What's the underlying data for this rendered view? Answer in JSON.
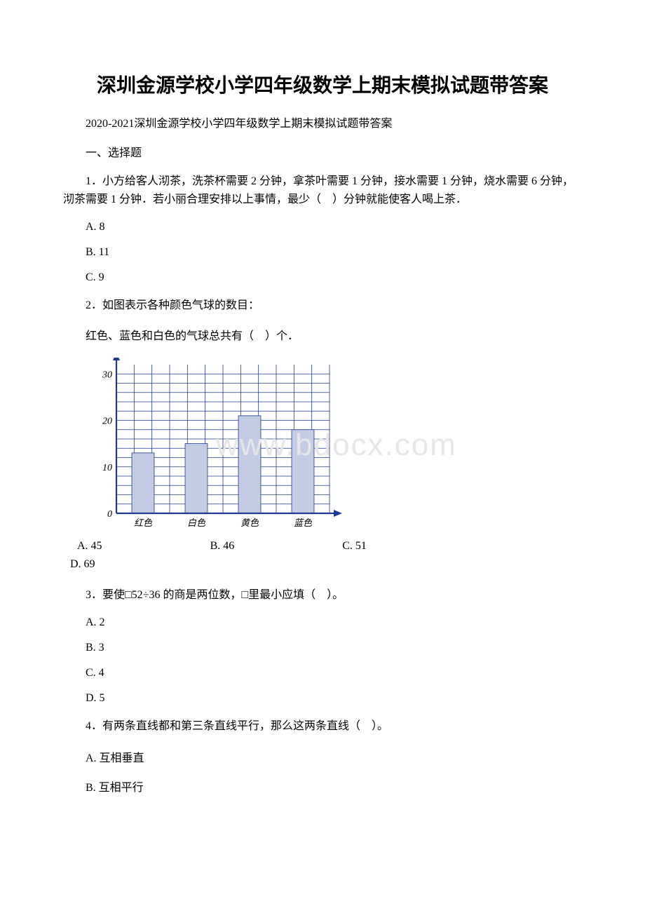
{
  "title": "深圳金源学校小学四年级数学上期末模拟试题带答案",
  "subtitle": "2020-2021深圳金源学校小学四年级数学上期末模拟试题带答案",
  "section1_heading": "一、选择题",
  "q1": {
    "text": "1．小方给客人沏茶，洗茶杯需要 2 分钟，拿茶叶需要 1 分钟，接水需要 1 分钟，烧水需要 6 分钟，沏茶需要 1 分钟．若小丽合理安排以上事情，最少（　）分钟就能使客人喝上茶．",
    "A": "A. 8",
    "B": "B. 11",
    "C": "C. 9"
  },
  "q2": {
    "text": "2．如图表示各种颜色气球的数目：",
    "sub": "红色、蓝色和白色的气球总共有（　）个．",
    "A": "A. 45",
    "B": "B. 46",
    "C": "C. 51",
    "D": "D. 69"
  },
  "q3": {
    "text": "3．要使□52÷36 的商是两位数，□里最小应填（　）。",
    "A": "A. 2",
    "B": "B. 3",
    "C": "C. 4",
    "D": "D. 5"
  },
  "q4": {
    "text": "4．有两条直线都和第三条直线平行，那么这两条直线（　）。",
    "A": "A. 互相垂直",
    "B": "B. 互相平行"
  },
  "chart": {
    "y_ticks": [
      "0",
      "10",
      "20",
      "30"
    ],
    "x_labels": [
      "红色",
      "白色",
      "黄色",
      "蓝色"
    ],
    "bar_values": [
      13,
      15,
      21,
      18
    ],
    "y_max": 32,
    "bar_color": "#c2cde4",
    "grid_color": "#1f3b8f",
    "axis_color": "#1f3b8f",
    "background": "#ffffff",
    "watermark_text": "www.bdocx.com",
    "watermark_color": "#e6e6e6"
  }
}
